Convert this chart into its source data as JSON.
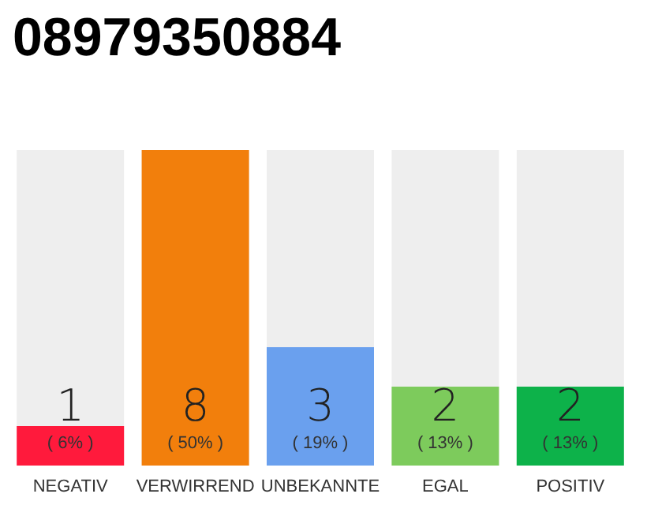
{
  "chart_data": {
    "type": "bar",
    "title": "08979350884",
    "categories": [
      "NEGATIV",
      "VERWIRREND",
      "UNBEKANNTE",
      "EGAL",
      "POSITIV"
    ],
    "values": [
      1,
      8,
      3,
      2,
      2
    ],
    "colors": [
      "#ff1a3c",
      "#f27f0c",
      "#6aa0ee",
      "#7dcb5c",
      "#0db24a"
    ],
    "data_labels": true,
    "annotations": [
      "( 6% )",
      "( 50% )",
      "( 19% )",
      "( 13% )",
      "( 13% )"
    ]
  }
}
